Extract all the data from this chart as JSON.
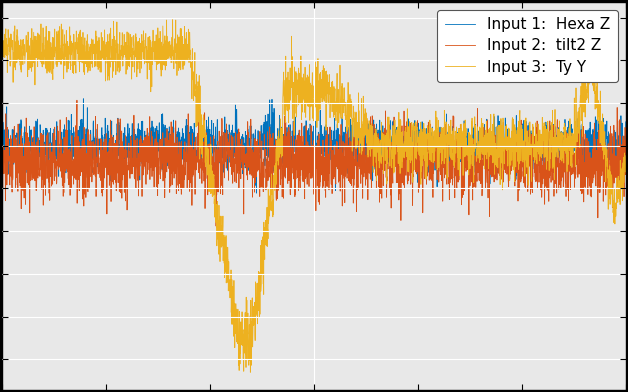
{
  "title": "",
  "line1_label": "Input 1:  Hexa Z",
  "line2_label": "Input 2:  tilt2 Z",
  "line3_label": "Input 3:  Ty Y",
  "line1_color": "#0072BD",
  "line2_color": "#D95319",
  "line3_color": "#EDB120",
  "n_points": 3000,
  "xlim": [
    0,
    3000
  ],
  "legend_loc": "upper right",
  "axes_facecolor": "#E8E8E8",
  "fig_facecolor": "#000000",
  "figsize": [
    6.28,
    3.92
  ],
  "dpi": 100,
  "legend_fontsize": 11
}
